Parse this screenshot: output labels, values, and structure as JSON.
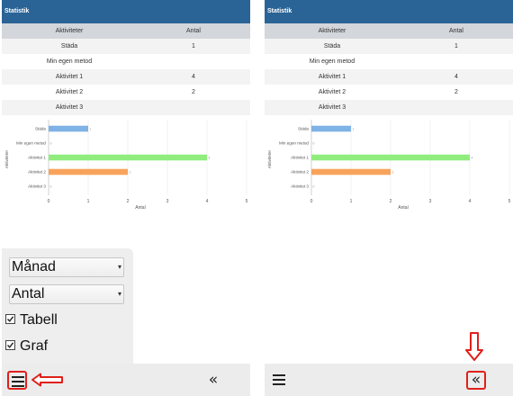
{
  "panels": [
    {
      "title": "Statistik",
      "table": {
        "headers": [
          "Aktiviteter",
          "Antal"
        ],
        "rows": [
          {
            "label": "Städa",
            "value": "1"
          },
          {
            "label": "Min egen metod",
            "value": ""
          },
          {
            "label": "Aktivitet 1",
            "value": "4"
          },
          {
            "label": "Aktivitet 2",
            "value": "2"
          },
          {
            "label": "Aktivitet 3",
            "value": ""
          }
        ]
      }
    },
    {
      "title": "Statistik",
      "table": {
        "headers": [
          "Aktiviteter",
          "Antal"
        ],
        "rows": [
          {
            "label": "Städa",
            "value": "1"
          },
          {
            "label": "Min egen metod",
            "value": ""
          },
          {
            "label": "Aktivitet 1",
            "value": "4"
          },
          {
            "label": "Aktivitet 2",
            "value": "2"
          },
          {
            "label": "Aktivitet 3",
            "value": ""
          }
        ]
      }
    }
  ],
  "chart_data": [
    {
      "type": "bar",
      "orientation": "horizontal",
      "categories": [
        "Städa",
        "Min egen metod",
        "Aktivitet 1",
        "Aktivitet 2",
        "Aktivitet 3"
      ],
      "values": [
        1,
        0,
        4,
        2,
        0
      ],
      "bar_colors": [
        "#7fb2e5",
        "#7fb2e5",
        "#90ed7d",
        "#f7a35c",
        "#f7a35c"
      ],
      "xlabel": "Antal",
      "ylabel": "Aktiviteter",
      "xlim": [
        0,
        5
      ],
      "xticks": [
        "0",
        "1",
        "2",
        "3",
        "4",
        "5"
      ],
      "grid": true
    },
    {
      "type": "bar",
      "orientation": "horizontal",
      "categories": [
        "Städa",
        "Min egen metod",
        "Aktivitet 1",
        "Aktivitet 2",
        "Aktivitet 3"
      ],
      "values": [
        1,
        0,
        4,
        2,
        0
      ],
      "bar_colors": [
        "#7fb2e5",
        "#7fb2e5",
        "#90ed7d",
        "#f7a35c",
        "#f7a35c"
      ],
      "xlabel": "Antal",
      "ylabel": "Aktiviteter",
      "xlim": [
        0,
        5
      ],
      "xticks": [
        "0",
        "1",
        "2",
        "3",
        "4",
        "5"
      ],
      "grid": true
    }
  ],
  "drawer": {
    "select_period": "Månad",
    "select_measure": "Antal",
    "checkboxes": [
      {
        "label": "Tabell",
        "checked": true
      },
      {
        "label": "Graf",
        "checked": true
      }
    ]
  },
  "toolbar": {
    "menu_icon": "hamburger-menu-icon",
    "collapse_icon": "double-chevron-left-icon",
    "collapse_glyph": "«"
  },
  "annotation_color": "#e0201b"
}
